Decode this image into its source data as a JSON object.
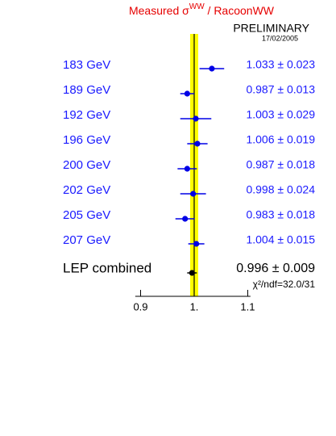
{
  "chart_data": {
    "type": "forest",
    "title": [
      "Measured σ",
      "WW",
      " / RacoonWW"
    ],
    "status": "PRELIMINARY",
    "date": "17/02/2005",
    "categories": [
      "183 GeV",
      "189 GeV",
      "192 GeV",
      "196 GeV",
      "200 GeV",
      "202 GeV",
      "205 GeV",
      "207 GeV"
    ],
    "series": [
      {
        "color": "#0000e6",
        "values": [
          1.033,
          0.987,
          1.003,
          1.006,
          0.987,
          0.998,
          0.983,
          1.004
        ],
        "errors": [
          0.023,
          0.013,
          0.029,
          0.019,
          0.018,
          0.024,
          0.018,
          0.015
        ],
        "value_labels": [
          "1.033 ± 0.023",
          "0.987 ± 0.013",
          "1.003 ± 0.029",
          "1.006 ± 0.019",
          "0.987 ± 0.018",
          "0.998 ± 0.024",
          "0.983 ± 0.018",
          "1.004 ± 0.015"
        ]
      }
    ],
    "combined": {
      "name": "LEP combined",
      "value": 0.996,
      "error": 0.009,
      "value_label": "0.996 ± 0.009",
      "color": "#000000"
    },
    "annotation": "χ²/ndf=32.0/31",
    "band": [
      0.9925,
      1.0075
    ],
    "band_color": "#ffff00",
    "reference": 1,
    "xlim": [
      0.89,
      1.105
    ],
    "xticks": [
      0.9,
      {
        "value": 1,
        "label": "1."
      },
      1.1
    ]
  }
}
